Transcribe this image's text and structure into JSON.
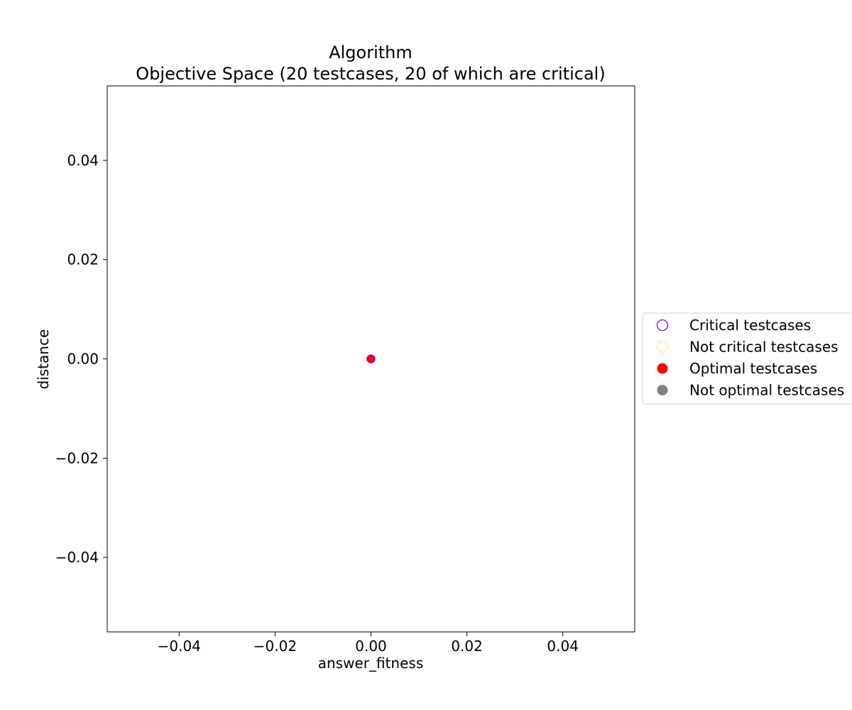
{
  "chart_data": {
    "type": "scatter",
    "title": "Algorithm",
    "subtitle": "Objective Space (20 testcases, 20 of which are critical)",
    "xlabel": "answer_fitness",
    "ylabel": "distance",
    "xlim": [
      -0.055,
      0.055
    ],
    "ylim": [
      -0.055,
      0.055
    ],
    "xticks": [
      -0.04,
      -0.02,
      0.0,
      0.02,
      0.04
    ],
    "yticks": [
      -0.04,
      -0.02,
      0.0,
      0.02,
      0.04
    ],
    "xtick_labels": [
      "−0.04",
      "−0.02",
      "0.00",
      "0.02",
      "0.04"
    ],
    "ytick_labels": [
      "−0.04",
      "−0.02",
      "0.00",
      "0.02",
      "0.04"
    ],
    "grid": false,
    "legend_position": "right-outside",
    "series": [
      {
        "name": "Optimal testcases",
        "color": "#ff0000",
        "fill": true,
        "points": [
          [
            0.0,
            0.0
          ]
        ]
      },
      {
        "name": "Critical testcases",
        "color": "#9400d3",
        "fill": false,
        "points": [
          [
            0.0,
            0.0
          ]
        ]
      }
    ],
    "legend": [
      {
        "label": "Critical testcases",
        "color": "#9400d3",
        "filled": false
      },
      {
        "label": "Not critical testcases",
        "color": "#f5e6a8",
        "filled": false
      },
      {
        "label": "Optimal testcases",
        "color": "#ff0000",
        "filled": true
      },
      {
        "label": "Not optimal testcases",
        "color": "#808080",
        "filled": true
      }
    ]
  }
}
